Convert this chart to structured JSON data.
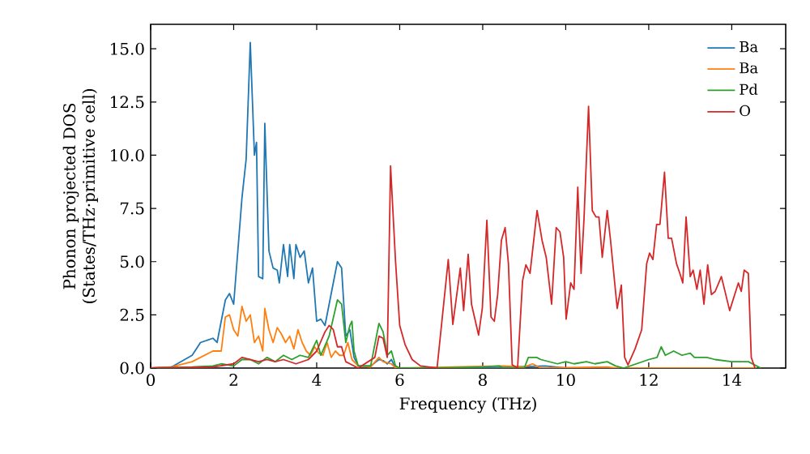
{
  "chart_data": {
    "type": "line",
    "xlabel": "Frequency (THz)",
    "ylabel": "Phonon projected DOS (States/THz·primitive cell)",
    "xlim": [
      0,
      15.3
    ],
    "ylim": [
      0,
      16.15
    ],
    "xticks": [
      0,
      2,
      4,
      6,
      8,
      10,
      12,
      14
    ],
    "yticks": [
      {
        "value": 0,
        "label": "0.0"
      },
      {
        "value": 2.5,
        "label": "2.5"
      },
      {
        "value": 5,
        "label": "5.0"
      },
      {
        "value": 7.5,
        "label": "7.5"
      },
      {
        "value": 10,
        "label": "10.0"
      },
      {
        "value": 12.5,
        "label": "12.5"
      },
      {
        "value": 15,
        "label": "15.0"
      }
    ],
    "legend": "top right",
    "marker": "none",
    "line_style": "solid",
    "series": [
      {
        "name": "Ba",
        "color": "#1f77b4",
        "x": [
          0,
          0.5,
          1.0,
          1.2,
          1.5,
          1.6,
          1.8,
          1.9,
          2.0,
          2.1,
          2.2,
          2.3,
          2.4,
          2.5,
          2.55,
          2.6,
          2.7,
          2.75,
          2.85,
          2.95,
          3.05,
          3.1,
          3.2,
          3.3,
          3.35,
          3.45,
          3.5,
          3.6,
          3.7,
          3.8,
          3.9,
          4.0,
          4.1,
          4.2,
          4.4,
          4.5,
          4.6,
          4.7,
          4.8,
          4.9,
          5.0,
          5.3,
          5.5,
          5.6,
          5.7,
          5.8,
          5.9,
          8.0,
          9.5,
          10.0,
          11.0,
          14.6
        ],
        "values": [
          0,
          0.05,
          0.6,
          1.2,
          1.4,
          1.2,
          3.2,
          3.5,
          3.0,
          5.5,
          8.0,
          9.8,
          15.3,
          10.0,
          10.6,
          4.3,
          4.2,
          11.5,
          5.5,
          4.7,
          4.6,
          4.0,
          5.8,
          4.3,
          5.8,
          4.2,
          5.8,
          5.2,
          5.5,
          4.0,
          4.7,
          2.2,
          2.3,
          2.0,
          4.0,
          5.0,
          4.7,
          1.5,
          1.8,
          0.5,
          0.1,
          0.1,
          0.4,
          0.35,
          0.2,
          0.4,
          0,
          0,
          0.1,
          0,
          0,
          0
        ]
      },
      {
        "name": "Ba",
        "color": "#ff7f0e",
        "x": [
          0,
          0.5,
          1.0,
          1.5,
          1.7,
          1.8,
          1.9,
          2.0,
          2.1,
          2.2,
          2.3,
          2.4,
          2.5,
          2.6,
          2.7,
          2.75,
          2.85,
          2.95,
          3.05,
          3.15,
          3.25,
          3.35,
          3.45,
          3.55,
          3.65,
          3.75,
          3.85,
          3.95,
          4.05,
          4.15,
          4.25,
          4.35,
          4.45,
          4.55,
          4.65,
          4.75,
          4.85,
          5.0,
          5.3,
          5.5,
          5.6,
          5.8,
          5.9,
          8.5,
          9.0,
          9.2,
          9.4,
          11.0,
          11.2,
          14.6
        ],
        "values": [
          0,
          0.05,
          0.3,
          0.8,
          0.8,
          2.4,
          2.5,
          1.8,
          1.5,
          2.9,
          2.2,
          2.5,
          1.2,
          1.5,
          0.8,
          2.8,
          1.8,
          1.2,
          1.9,
          1.6,
          1.2,
          1.5,
          0.9,
          1.8,
          1.2,
          0.8,
          0.6,
          1.0,
          0.7,
          0.6,
          1.2,
          0.5,
          0.8,
          0.6,
          0.6,
          1.2,
          0.4,
          0.1,
          0.05,
          0.5,
          0.3,
          0.2,
          0,
          0.1,
          0.05,
          0.2,
          0,
          0.05,
          0,
          0
        ]
      },
      {
        "name": "Pd",
        "color": "#2ca02c",
        "x": [
          0,
          1.0,
          1.5,
          1.7,
          2.0,
          2.2,
          2.4,
          2.6,
          2.8,
          3.0,
          3.2,
          3.4,
          3.6,
          3.8,
          4.0,
          4.1,
          4.3,
          4.5,
          4.6,
          4.7,
          4.8,
          4.85,
          4.9,
          5.0,
          5.3,
          5.5,
          5.6,
          5.7,
          5.8,
          5.9,
          6.0,
          7.0,
          8.0,
          8.4,
          8.5,
          9.0,
          9.1,
          9.3,
          9.4,
          9.6,
          9.8,
          10.0,
          10.2,
          10.5,
          10.7,
          11.0,
          11.2,
          11.4,
          11.7,
          12.0,
          12.2,
          12.3,
          12.4,
          12.6,
          12.8,
          13.0,
          13.1,
          13.4,
          13.6,
          14.0,
          14.4,
          14.6,
          14.7
        ],
        "values": [
          0,
          0.05,
          0.1,
          0.2,
          0.1,
          0.4,
          0.4,
          0.2,
          0.5,
          0.3,
          0.6,
          0.4,
          0.6,
          0.5,
          1.3,
          0.6,
          1.5,
          3.2,
          3.0,
          1.2,
          2.0,
          2.2,
          0.8,
          0.1,
          0.1,
          2.1,
          1.7,
          0.6,
          0.8,
          0.1,
          0,
          0,
          0.05,
          0.1,
          0,
          0,
          0.5,
          0.5,
          0.4,
          0.3,
          0.2,
          0.3,
          0.2,
          0.3,
          0.2,
          0.3,
          0.1,
          0,
          0.2,
          0.4,
          0.5,
          1.0,
          0.6,
          0.8,
          0.6,
          0.7,
          0.5,
          0.5,
          0.4,
          0.3,
          0.3,
          0.1,
          0
        ]
      },
      {
        "name": "O",
        "color": "#d62728",
        "x": [
          0,
          1.5,
          2.0,
          2.2,
          2.4,
          2.6,
          2.8,
          3.0,
          3.2,
          3.5,
          3.8,
          4.0,
          4.2,
          4.3,
          4.4,
          4.5,
          4.6,
          4.7,
          4.8,
          5.0,
          5.4,
          5.5,
          5.6,
          5.7,
          5.78,
          5.9,
          6.0,
          6.13,
          6.3,
          6.5,
          6.9,
          7.17,
          7.28,
          7.46,
          7.54,
          7.65,
          7.73,
          7.9,
          7.99,
          8.1,
          8.2,
          8.28,
          8.36,
          8.45,
          8.54,
          8.62,
          8.71,
          8.84,
          8.96,
          9.04,
          9.14,
          9.31,
          9.43,
          9.53,
          9.66,
          9.77,
          9.86,
          9.95,
          10.01,
          10.12,
          10.2,
          10.29,
          10.37,
          10.44,
          10.55,
          10.64,
          10.73,
          10.8,
          10.88,
          11.0,
          11.08,
          11.24,
          11.34,
          11.42,
          11.5,
          11.67,
          11.83,
          11.95,
          12.02,
          12.1,
          12.19,
          12.27,
          12.38,
          12.47,
          12.55,
          12.67,
          12.75,
          12.82,
          12.9,
          13.0,
          13.07,
          13.16,
          13.24,
          13.33,
          13.42,
          13.51,
          13.6,
          13.75,
          13.95,
          14.07,
          14.16,
          14.23,
          14.3,
          14.4,
          14.47,
          14.56
        ],
        "values": [
          0,
          0.05,
          0.2,
          0.5,
          0.4,
          0.3,
          0.4,
          0.3,
          0.4,
          0.2,
          0.4,
          0.8,
          1.7,
          2.0,
          1.8,
          1.0,
          1.0,
          0.3,
          0.2,
          0,
          0.5,
          1.5,
          1.4,
          0.5,
          9.5,
          5.0,
          2.0,
          1.1,
          0.4,
          0.1,
          0,
          5.1,
          2.05,
          4.7,
          2.7,
          5.35,
          3.0,
          1.55,
          2.8,
          6.95,
          2.4,
          2.2,
          3.45,
          6.0,
          6.6,
          4.9,
          0.15,
          0,
          4.1,
          4.85,
          4.45,
          7.4,
          6.0,
          5.2,
          3.0,
          6.6,
          6.4,
          5.2,
          2.3,
          4.0,
          3.7,
          8.5,
          4.45,
          7.0,
          12.3,
          7.4,
          7.1,
          7.1,
          5.2,
          7.4,
          6.0,
          2.8,
          3.9,
          0.5,
          0.15,
          0.9,
          1.8,
          4.9,
          5.4,
          5.1,
          6.75,
          6.75,
          9.2,
          6.1,
          6.1,
          4.9,
          4.45,
          4.0,
          7.1,
          4.3,
          4.6,
          3.7,
          4.6,
          3.0,
          4.85,
          3.45,
          3.6,
          4.3,
          2.7,
          3.45,
          4.0,
          3.6,
          4.6,
          4.45,
          0.5,
          0
        ]
      }
    ]
  }
}
